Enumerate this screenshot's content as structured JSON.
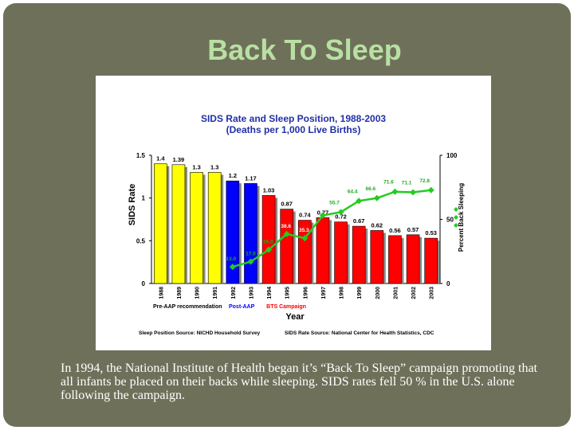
{
  "slide": {
    "title": "Back To Sleep",
    "caption": "In 1994, the National Institute of Health began it’s “Back To Sleep” campaign promoting that all infants be placed on their backs while sleeping. SIDS rates fell 50 % in the U.S. alone following the campaign."
  },
  "colors": {
    "background": "#6f705a",
    "title": "#b8e0a2",
    "chart_title": "#1f2fa8",
    "pre_aap": "#ffff00",
    "post_aap": "#0000ff",
    "bts": "#ff0000",
    "line": "#22cc22"
  },
  "chart_data": {
    "type": "bar",
    "title": "SIDS Rate and Sleep Position, 1988-2003",
    "subtitle": "(Deaths per 1,000 Live Births)",
    "xlabel": "Year",
    "ylabel": "SIDS Rate",
    "y2label": "Percent Back Sleeping",
    "ylim": [
      0,
      1.5
    ],
    "y2lim": [
      0,
      100
    ],
    "yticks": [
      "0",
      "0.5",
      "1",
      "1.5"
    ],
    "y2ticks": [
      "0",
      "50",
      "100"
    ],
    "grid": false,
    "categories": [
      "1988",
      "1989",
      "1990",
      "1991",
      "1992",
      "1993",
      "1994",
      "1995",
      "1996",
      "1997",
      "1998",
      "1999",
      "2000",
      "2001",
      "2002",
      "2003"
    ],
    "series": [
      {
        "values": [
          1.4,
          1.39,
          1.3,
          1.3,
          1.2,
          1.17,
          1.03,
          0.87,
          0.74,
          0.77,
          0.72,
          0.67,
          0.62,
          0.56,
          0.57,
          0.53
        ],
        "labels": [
          "1.4",
          "1.39",
          "1.3",
          "1.3",
          "1.2",
          "1.17",
          "1.03",
          "0.87",
          "0.74",
          "0.77",
          "0.72",
          "0.67",
          "0.62",
          "0.56",
          "0.57",
          "0.53"
        ]
      }
    ],
    "line_series": {
      "x": [
        "1992",
        "1993",
        "1994",
        "1995",
        "1996",
        "1997",
        "1998",
        "1999",
        "2000",
        "2001",
        "2002",
        "2003"
      ],
      "values": [
        13.0,
        17.0,
        26.3,
        38.6,
        35.3,
        53.1,
        55.7,
        64.4,
        66.6,
        71.6,
        71.1,
        72.8
      ],
      "labels": [
        "13.0",
        "17.0",
        "26.3",
        "38.6",
        "35.3",
        "53.1",
        "55.7",
        "64.4",
        "66.6",
        "71.6",
        "71.1",
        "72.8"
      ]
    },
    "periods": [
      {
        "label": "Pre-AAP recommendation",
        "color": "#000000",
        "bar_color": "#ffff00",
        "from": 0,
        "to": 3
      },
      {
        "label": "Post-AAP",
        "color": "#0000ff",
        "bar_color": "#0000ff",
        "from": 4,
        "to": 5
      },
      {
        "label": "BTS Campaign",
        "color": "#ff0000",
        "bar_color": "#ff0000",
        "from": 6,
        "to": 15
      }
    ],
    "sources": {
      "left": "Sleep Position Source:  NICHD Household Survey",
      "right": "SIDS Rate Source: National Center for Health Statistics, CDC"
    }
  }
}
